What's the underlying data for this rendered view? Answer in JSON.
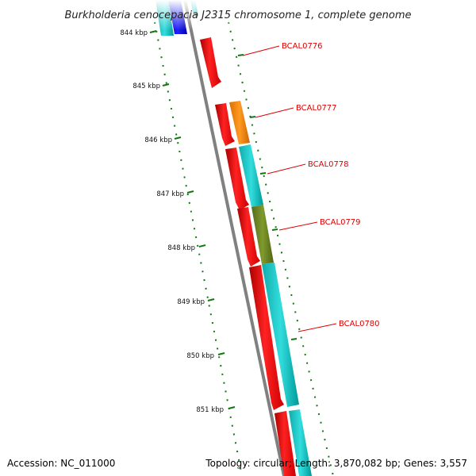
{
  "title": "Burkholderia cenocepacia J2315 chromosome 1, complete genome",
  "footer": {
    "accession_label": "Accession: NC_011000",
    "summary_label": "Topology: circular; Length: 3,870,082 bp; Genes: 3,557"
  },
  "colors": {
    "backbone": "#808080",
    "tick": "#117711",
    "label": "#dd0000",
    "forward": "#ff0000",
    "cyan": "#22cccc",
    "orange": "#ff8c00",
    "olive": "#6b8e23",
    "blue": "#0000ee"
  },
  "kbp_ticks": [
    "844 kbp",
    "845 kbp",
    "846 kbp",
    "847 kbp",
    "848 kbp",
    "849 kbp",
    "850 kbp",
    "851 kbp"
  ],
  "gene_labels": [
    "BCAL0776",
    "BCAL0777",
    "BCAL0778",
    "BCAL0779",
    "BCAL0780"
  ]
}
